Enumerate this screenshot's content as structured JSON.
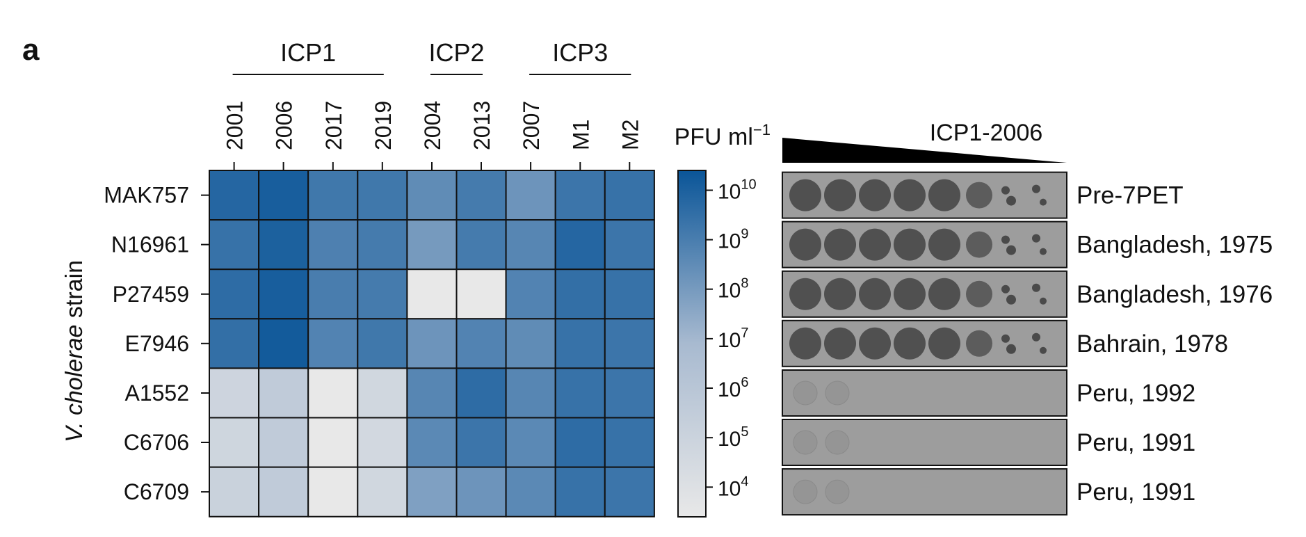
{
  "panel_label": "a",
  "chart_data": {
    "type": "heatmap",
    "ylabel": "V. cholerae strain",
    "groups": [
      {
        "label": "ICP1",
        "columns": [
          "2001",
          "2006",
          "2017",
          "2019"
        ]
      },
      {
        "label": "ICP2",
        "columns": [
          "2004",
          "2013"
        ]
      },
      {
        "label": "ICP3",
        "columns": [
          "2007",
          "M1",
          "M2"
        ]
      }
    ],
    "columns": [
      "2001",
      "2006",
      "2017",
      "2019",
      "2004",
      "2013",
      "2007",
      "M1",
      "M2"
    ],
    "rows": [
      "MAK757",
      "N16961",
      "P27459",
      "E7946",
      "A1552",
      "C6706",
      "C6709"
    ],
    "value_scale": "log10",
    "values_log10": [
      [
        9.8,
        10.1,
        9.2,
        9.2,
        8.5,
        9.1,
        8.2,
        9.3,
        9.4
      ],
      [
        9.4,
        10.0,
        8.9,
        9.1,
        8.0,
        9.1,
        8.7,
        9.8,
        9.3
      ],
      [
        9.6,
        10.1,
        9.0,
        9.1,
        3.0,
        3.0,
        8.8,
        9.5,
        9.4
      ],
      [
        9.5,
        10.2,
        8.8,
        9.2,
        8.2,
        8.8,
        8.5,
        9.4,
        9.3
      ],
      [
        4.9,
        5.6,
        3.0,
        4.7,
        8.7,
        9.6,
        8.7,
        9.4,
        9.3
      ],
      [
        4.8,
        5.6,
        3.0,
        4.6,
        8.6,
        9.3,
        8.6,
        9.6,
        9.4
      ],
      [
        5.1,
        5.6,
        3.0,
        4.7,
        7.8,
        8.2,
        8.6,
        9.4,
        9.3
      ]
    ],
    "colorbar": {
      "label_main": "PFU ml",
      "label_exponent": "−1",
      "range_log10": [
        3.4,
        10.4
      ],
      "ticks": [
        {
          "base": "10",
          "exp": "10",
          "value": 10
        },
        {
          "base": "10",
          "exp": "9",
          "value": 9
        },
        {
          "base": "10",
          "exp": "8",
          "value": 8
        },
        {
          "base": "10",
          "exp": "7",
          "value": 7
        },
        {
          "base": "10",
          "exp": "6",
          "value": 6
        },
        {
          "base": "10",
          "exp": "5",
          "value": 5
        },
        {
          "base": "10",
          "exp": "4",
          "value": 4
        }
      ],
      "color_low": "#e8e8e8",
      "color_mid": "#a8bad0",
      "color_high": "#0a5598"
    },
    "plaque_assay": {
      "title": "ICP1-2006",
      "plate_color": "#9d9d9d",
      "strain_origins": [
        "Pre-7PET",
        "Bangladesh, 1975",
        "Bangladesh, 1976",
        "Bahrain, 1978",
        "Peru, 1992",
        "Peru, 1991",
        "Peru, 1991"
      ],
      "lysis": [
        "positive",
        "positive",
        "positive",
        "positive",
        "negative",
        "negative",
        "negative"
      ]
    }
  }
}
